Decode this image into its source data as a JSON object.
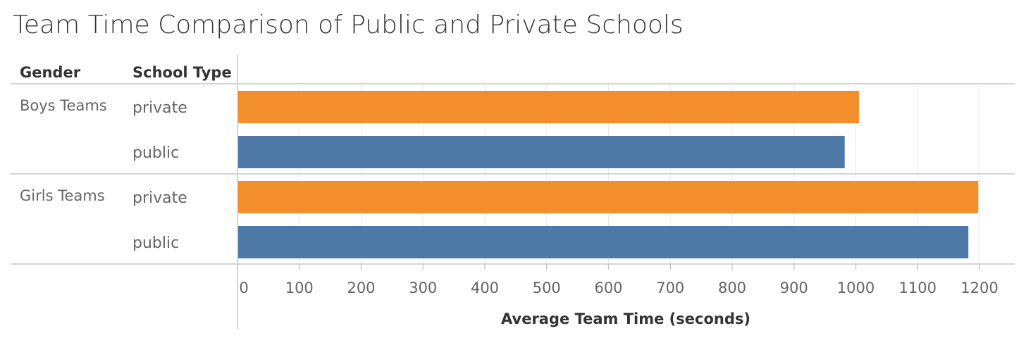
{
  "chart_data": {
    "type": "bar",
    "orientation": "horizontal",
    "title": "Team Time Comparison of Public and Private Schools",
    "row_headers": [
      "Gender",
      "School Type"
    ],
    "xlabel": "Average Team Time (seconds)",
    "xlim": [
      0,
      1250
    ],
    "xticks": [
      0,
      100,
      200,
      300,
      400,
      500,
      600,
      700,
      800,
      900,
      1000,
      1100,
      1200
    ],
    "grid": true,
    "groups": [
      {
        "name": "Boys Teams",
        "rows": [
          {
            "type": "private",
            "value": 1005
          },
          {
            "type": "public",
            "value": 982
          }
        ]
      },
      {
        "name": "Girls Teams",
        "rows": [
          {
            "type": "private",
            "value": 1198
          },
          {
            "type": "public",
            "value": 1182
          }
        ]
      }
    ],
    "colors": {
      "private": "#f28e2b",
      "public": "#4e79a7"
    }
  }
}
